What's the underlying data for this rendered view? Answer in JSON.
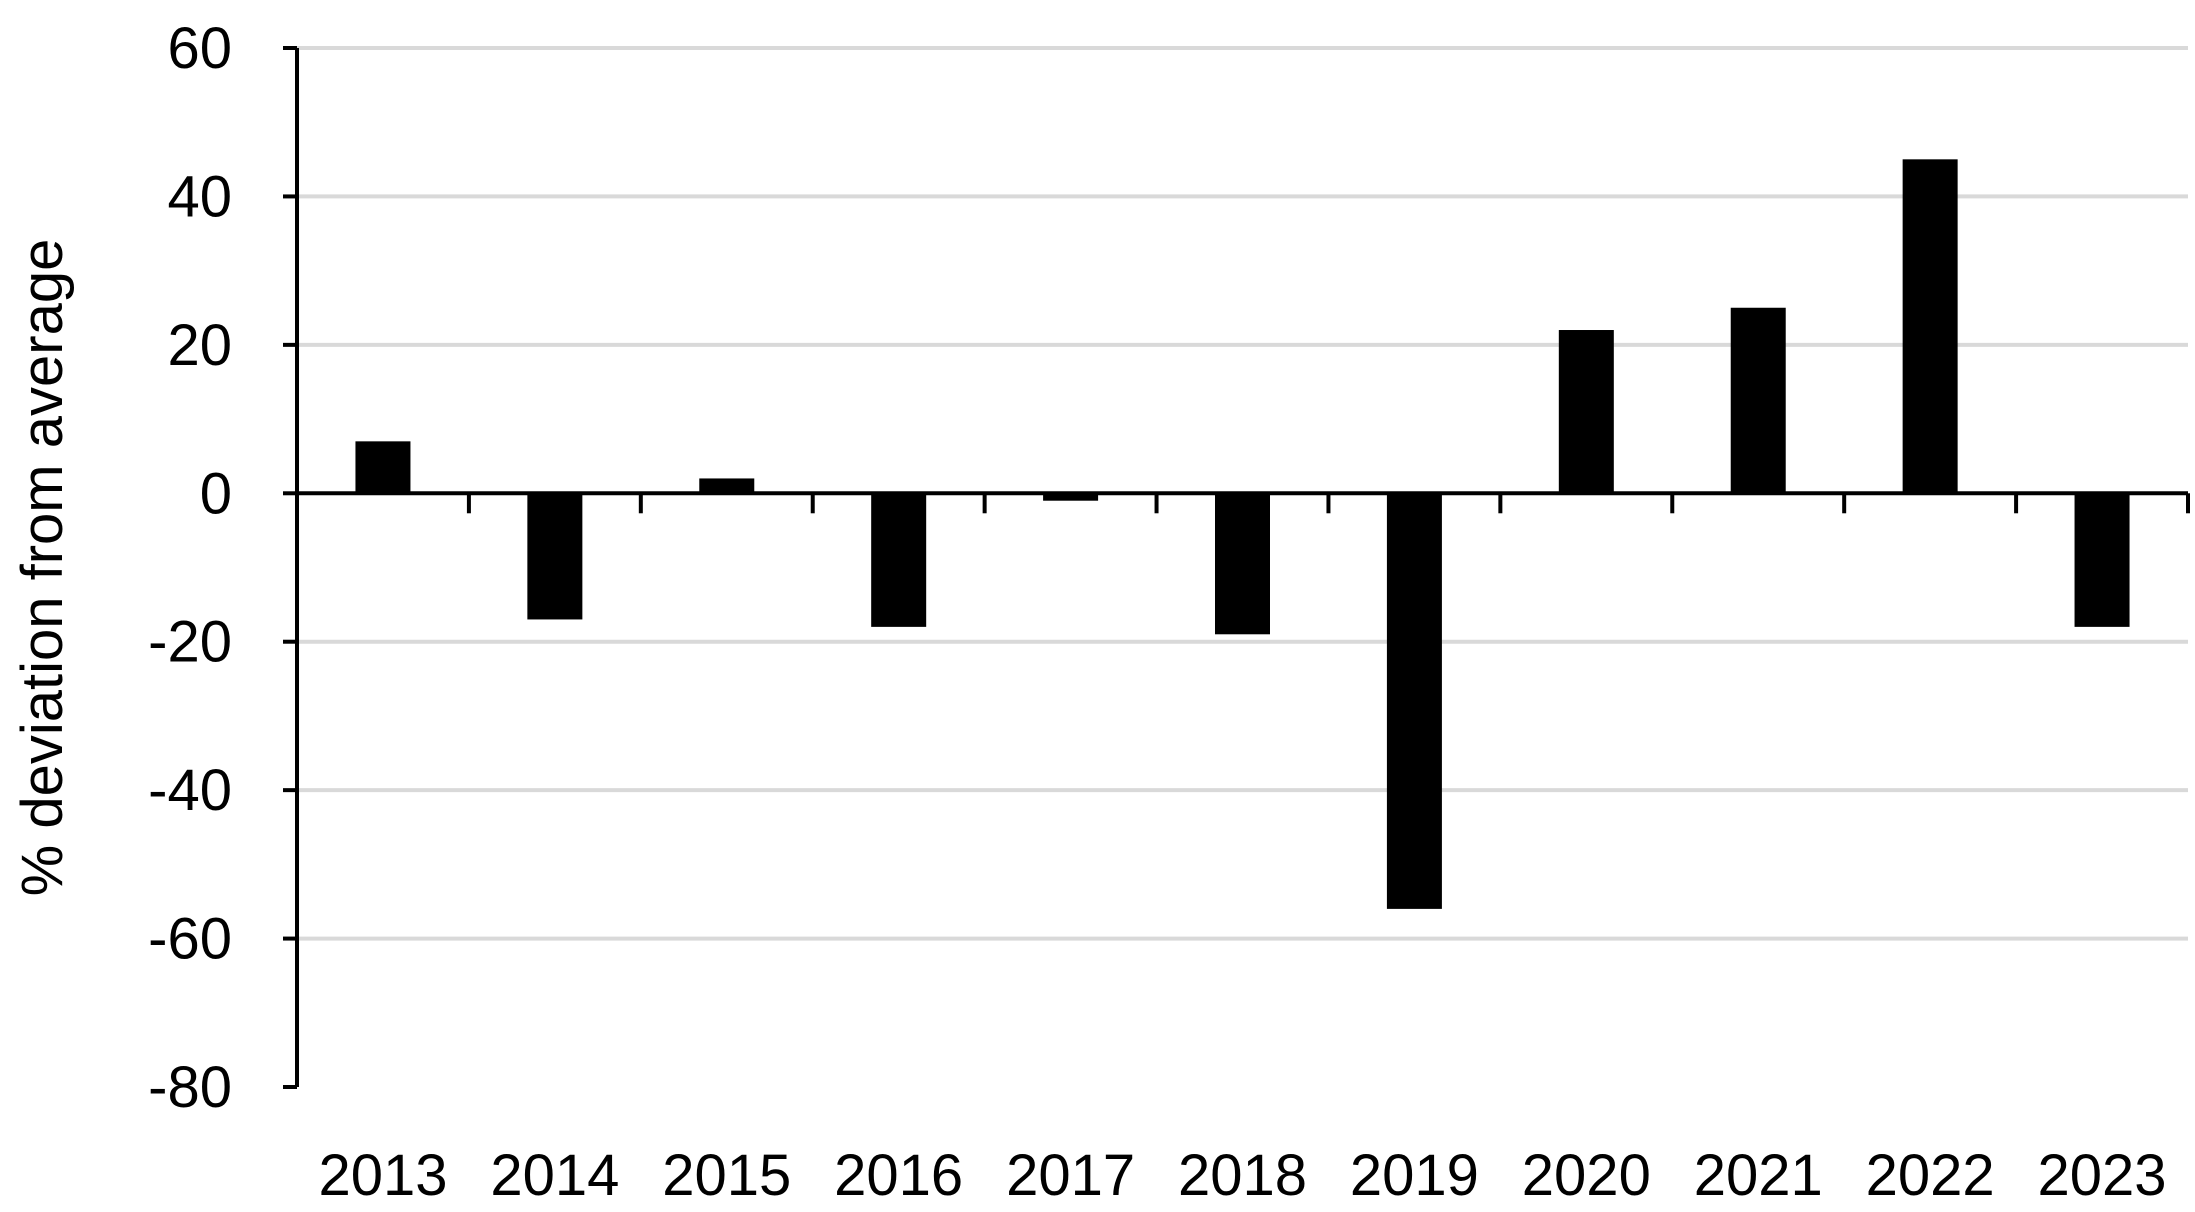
{
  "chart_data": {
    "type": "bar",
    "title": "",
    "xlabel": "",
    "ylabel": "% deviation from average",
    "categories": [
      "2013",
      "2014",
      "2015",
      "2016",
      "2017",
      "2018",
      "2019",
      "2020",
      "2021",
      "2022",
      "2023"
    ],
    "values": [
      7,
      -17,
      2,
      -18,
      -1,
      -19,
      -56,
      22,
      25,
      45,
      -18
    ],
    "ylim": [
      -80,
      60
    ],
    "yticks": [
      60,
      40,
      20,
      0,
      -20,
      -40,
      -60,
      -80
    ],
    "grid": true,
    "legend": "none",
    "colors": {
      "bar": "#000000",
      "grid": "#d9d9d9",
      "axis": "#000000"
    }
  }
}
